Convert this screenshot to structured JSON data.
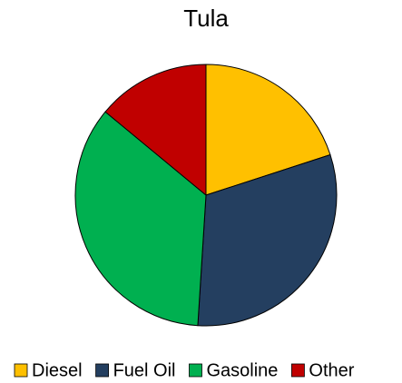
{
  "chart_data": {
    "type": "pie",
    "title": "Tula",
    "categories": [
      "Diesel",
      "Fuel Oil",
      "Gasoline",
      "Other"
    ],
    "values": [
      20,
      31,
      35,
      14
    ],
    "colors": [
      "#ffc000",
      "#243f60",
      "#00b050",
      "#c00000"
    ],
    "legend": "bottom"
  }
}
